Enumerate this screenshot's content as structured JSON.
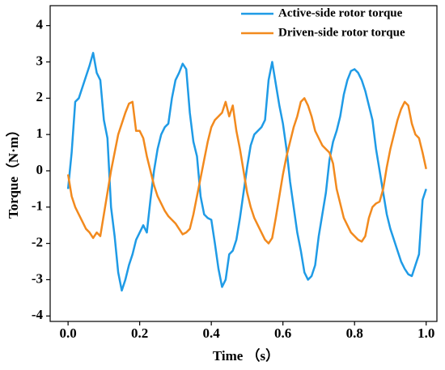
{
  "chart_data": {
    "type": "line",
    "x_label": "Time （s）",
    "y_label": "Torque（N·m）",
    "x": [
      0,
      0.01,
      0.02,
      0.03,
      0.04,
      0.05,
      0.06,
      0.07,
      0.08,
      0.09,
      0.1,
      0.11,
      0.12,
      0.13,
      0.14,
      0.15,
      0.16,
      0.17,
      0.18,
      0.19,
      0.2,
      0.21,
      0.22,
      0.23,
      0.24,
      0.25,
      0.26,
      0.27,
      0.28,
      0.29,
      0.3,
      0.31,
      0.32,
      0.33,
      0.34,
      0.35,
      0.36,
      0.37,
      0.38,
      0.39,
      0.4,
      0.41,
      0.42,
      0.43,
      0.44,
      0.45,
      0.46,
      0.47,
      0.48,
      0.49,
      0.5,
      0.51,
      0.52,
      0.53,
      0.54,
      0.55,
      0.56,
      0.57,
      0.58,
      0.59,
      0.6,
      0.61,
      0.62,
      0.63,
      0.64,
      0.65,
      0.66,
      0.67,
      0.68,
      0.69,
      0.7,
      0.71,
      0.72,
      0.73,
      0.74,
      0.75,
      0.76,
      0.77,
      0.78,
      0.79,
      0.8,
      0.81,
      0.82,
      0.83,
      0.84,
      0.85,
      0.86,
      0.87,
      0.88,
      0.89,
      0.9,
      0.91,
      0.92,
      0.93,
      0.94,
      0.95,
      0.96,
      0.97,
      0.98,
      0.99,
      1
    ],
    "series": [
      {
        "name": "Active-side rotor torque",
        "color": "#1f9be6",
        "values": [
          -0.5,
          0.5,
          1.9,
          2.0,
          2.3,
          2.6,
          2.9,
          3.25,
          2.7,
          2.5,
          1.4,
          0.9,
          -1.0,
          -1.8,
          -2.8,
          -3.3,
          -3.0,
          -2.6,
          -2.3,
          -1.9,
          -1.7,
          -1.5,
          -1.7,
          -0.8,
          0,
          0.6,
          1.0,
          1.2,
          1.3,
          2.0,
          2.5,
          2.7,
          2.95,
          2.8,
          1.6,
          0.8,
          0.4,
          -0.7,
          -1.2,
          -1.3,
          -1.35,
          -2.0,
          -2.7,
          -3.2,
          -3.0,
          -2.3,
          -2.2,
          -1.9,
          -1.3,
          -0.6,
          0.1,
          0.7,
          1.0,
          1.1,
          1.2,
          1.4,
          2.5,
          3.0,
          2.4,
          1.8,
          1.3,
          0.6,
          -0.3,
          -1.0,
          -1.7,
          -2.2,
          -2.8,
          -3.0,
          -2.9,
          -2.6,
          -1.8,
          -1.2,
          -0.6,
          0.3,
          0.8,
          1.1,
          1.5,
          2.1,
          2.5,
          2.75,
          2.8,
          2.7,
          2.5,
          2.2,
          1.8,
          1.4,
          0.6,
          0.0,
          -0.6,
          -1.2,
          -1.6,
          -1.9,
          -2.2,
          -2.5,
          -2.7,
          -2.85,
          -2.9,
          -2.6,
          -2.3,
          -0.8,
          -0.5
        ]
      },
      {
        "name": "Driven-side rotor torque",
        "color": "#f28a1e",
        "values": [
          -0.1,
          -0.7,
          -1.0,
          -1.2,
          -1.4,
          -1.6,
          -1.7,
          -1.85,
          -1.7,
          -1.8,
          -1.2,
          -0.6,
          0.0,
          0.5,
          1.0,
          1.3,
          1.6,
          1.85,
          1.9,
          1.1,
          1.1,
          0.9,
          0.4,
          0.0,
          -0.4,
          -0.7,
          -0.9,
          -1.1,
          -1.25,
          -1.35,
          -1.45,
          -1.6,
          -1.75,
          -1.7,
          -1.6,
          -1.2,
          -0.7,
          -0.2,
          0.3,
          0.8,
          1.2,
          1.4,
          1.5,
          1.6,
          1.9,
          1.5,
          1.8,
          1.1,
          0.6,
          0.0,
          -0.6,
          -1.0,
          -1.3,
          -1.5,
          -1.7,
          -1.9,
          -2.0,
          -1.85,
          -1.3,
          -0.7,
          -0.1,
          0.4,
          0.8,
          1.2,
          1.5,
          1.9,
          2.0,
          1.8,
          1.5,
          1.1,
          0.9,
          0.7,
          0.6,
          0.5,
          0.2,
          -0.5,
          -0.9,
          -1.3,
          -1.5,
          -1.7,
          -1.8,
          -1.9,
          -1.95,
          -1.8,
          -1.3,
          -1.0,
          -0.9,
          -0.85,
          -0.5,
          0.1,
          0.6,
          1.0,
          1.4,
          1.7,
          1.9,
          1.8,
          1.3,
          1.0,
          0.9,
          0.5,
          0.05
        ]
      }
    ],
    "xlim": [
      -0.05,
      1.03
    ],
    "ylim": [
      -4.15,
      4.55
    ],
    "xticks": [
      {
        "value": 0,
        "label": "0.0"
      },
      {
        "value": 0.2,
        "label": "0.2"
      },
      {
        "value": 0.4,
        "label": "0.4"
      },
      {
        "value": 0.6,
        "label": "0.6"
      },
      {
        "value": 0.8,
        "label": "0.8"
      },
      {
        "value": 1,
        "label": "1.0"
      }
    ],
    "yticks": [
      -4,
      -3,
      -2,
      -1,
      0,
      1,
      2,
      3,
      4
    ],
    "grid": false,
    "legend": "upper right"
  }
}
